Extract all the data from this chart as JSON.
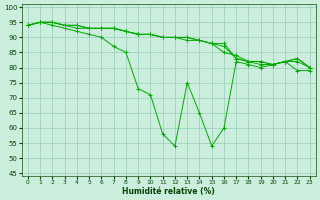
{
  "xlabel": "Humidité relative (%)",
  "background_color": "#cceedd",
  "grid_color": "#99ccbb",
  "line_color": "#00aa00",
  "xlim": [
    -0.5,
    23.5
  ],
  "ylim": [
    44,
    101
  ],
  "yticks": [
    45,
    50,
    55,
    60,
    65,
    70,
    75,
    80,
    85,
    90,
    95,
    100
  ],
  "xticks": [
    0,
    1,
    2,
    3,
    4,
    5,
    6,
    7,
    8,
    9,
    10,
    11,
    12,
    13,
    14,
    15,
    16,
    17,
    18,
    19,
    20,
    21,
    22,
    23
  ],
  "series": [
    [
      94,
      95,
      95,
      94,
      94,
      93,
      93,
      93,
      92,
      91,
      91,
      90,
      90,
      89,
      89,
      88,
      88,
      83,
      82,
      81,
      81,
      82,
      83,
      80
    ],
    [
      94,
      95,
      95,
      94,
      94,
      93,
      93,
      93,
      92,
      91,
      91,
      90,
      90,
      90,
      89,
      88,
      87,
      83,
      82,
      82,
      81,
      82,
      82,
      80
    ],
    [
      94,
      95,
      95,
      94,
      93,
      93,
      93,
      93,
      92,
      91,
      91,
      90,
      90,
      90,
      89,
      88,
      85,
      84,
      82,
      82,
      81,
      82,
      83,
      80
    ],
    [
      94,
      95,
      94,
      93,
      92,
      91,
      90,
      87,
      85,
      73,
      71,
      58,
      54,
      75,
      65,
      54,
      60,
      82,
      81,
      80,
      81,
      82,
      79,
      79
    ]
  ]
}
